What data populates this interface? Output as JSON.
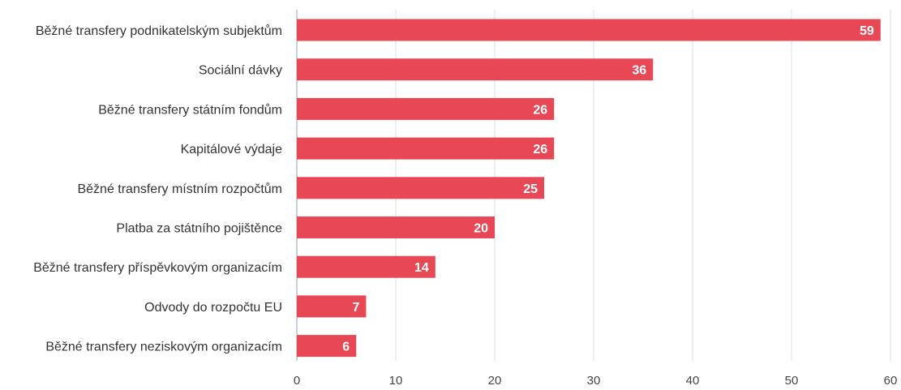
{
  "chart_data": {
    "type": "bar",
    "orientation": "horizontal",
    "categories": [
      "Běžné transfery podnikatelským subjektům",
      "Sociální dávky",
      "Běžné transfery státním fondům",
      "Kapitálové výdaje",
      "Běžné transfery místním rozpočtům",
      "Platba za státního pojištěnce",
      "Běžné transfery příspěvkovým organizacím",
      "Odvody do rozpočtu EU",
      "Běžné transfery neziskovým organizacím"
    ],
    "values": [
      59,
      36,
      26,
      26,
      25,
      20,
      14,
      7,
      6
    ],
    "title": "",
    "xlabel": "",
    "ylabel": "",
    "xlim": [
      0,
      60
    ],
    "xticks": [
      "0",
      "10",
      "20",
      "30",
      "40",
      "50",
      "60"
    ],
    "grid": "vertical",
    "legend": "none",
    "colors": {
      "bar": "#e84855",
      "value_label": "#ffffff",
      "grid": "#dde3ea"
    }
  }
}
